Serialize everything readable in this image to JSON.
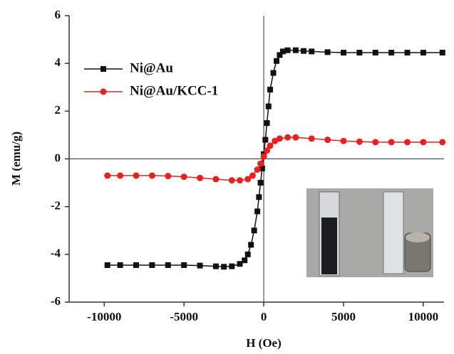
{
  "chart_data": {
    "type": "line",
    "x_label": "H (Oe)",
    "y_label": "M (emu/g)",
    "xlim": [
      -12200,
      11300
    ],
    "ylim": [
      -6,
      6
    ],
    "xticks": [
      -10000,
      -5000,
      0,
      5000,
      10000
    ],
    "yticks": [
      -6,
      -4,
      -2,
      0,
      2,
      4,
      6
    ],
    "legend": "upper left",
    "series": [
      {
        "name": "Ni@Au",
        "color": "#111111",
        "marker": "square",
        "x": [
          -9800,
          -9000,
          -8000,
          -7000,
          -6000,
          -5000,
          -4000,
          -3000,
          -2500,
          -2000,
          -1500,
          -1200,
          -1000,
          -800,
          -600,
          -400,
          -300,
          -200,
          -100,
          0,
          100,
          200,
          300,
          400,
          600,
          800,
          1000,
          1200,
          1500,
          2000,
          2500,
          3000,
          4000,
          5000,
          6000,
          7000,
          8000,
          9000,
          10000,
          11200
        ],
        "values": [
          -4.45,
          -4.45,
          -4.45,
          -4.45,
          -4.45,
          -4.45,
          -4.47,
          -4.5,
          -4.52,
          -4.5,
          -4.4,
          -4.25,
          -4.0,
          -3.6,
          -3.0,
          -2.2,
          -1.6,
          -1.0,
          -0.4,
          0.2,
          0.8,
          1.5,
          2.2,
          2.9,
          3.6,
          4.1,
          4.35,
          4.5,
          4.55,
          4.55,
          4.52,
          4.5,
          4.47,
          4.45,
          4.45,
          4.45,
          4.45,
          4.45,
          4.45,
          4.45
        ]
      },
      {
        "name": "Ni@Au/KCC-1",
        "color": "#e8211d",
        "marker": "circle",
        "x": [
          -9800,
          -9000,
          -8000,
          -7000,
          -6000,
          -5000,
          -4000,
          -3000,
          -2000,
          -1500,
          -1000,
          -700,
          -400,
          -200,
          0,
          200,
          400,
          700,
          1000,
          1500,
          2000,
          3000,
          4000,
          5000,
          6000,
          7000,
          8000,
          9000,
          10000,
          11200
        ],
        "values": [
          -0.7,
          -0.7,
          -0.7,
          -0.7,
          -0.72,
          -0.75,
          -0.8,
          -0.85,
          -0.9,
          -0.9,
          -0.85,
          -0.7,
          -0.45,
          -0.2,
          0.1,
          0.35,
          0.55,
          0.75,
          0.85,
          0.9,
          0.9,
          0.85,
          0.8,
          0.75,
          0.72,
          0.7,
          0.7,
          0.7,
          0.7,
          0.7
        ]
      }
    ]
  }
}
